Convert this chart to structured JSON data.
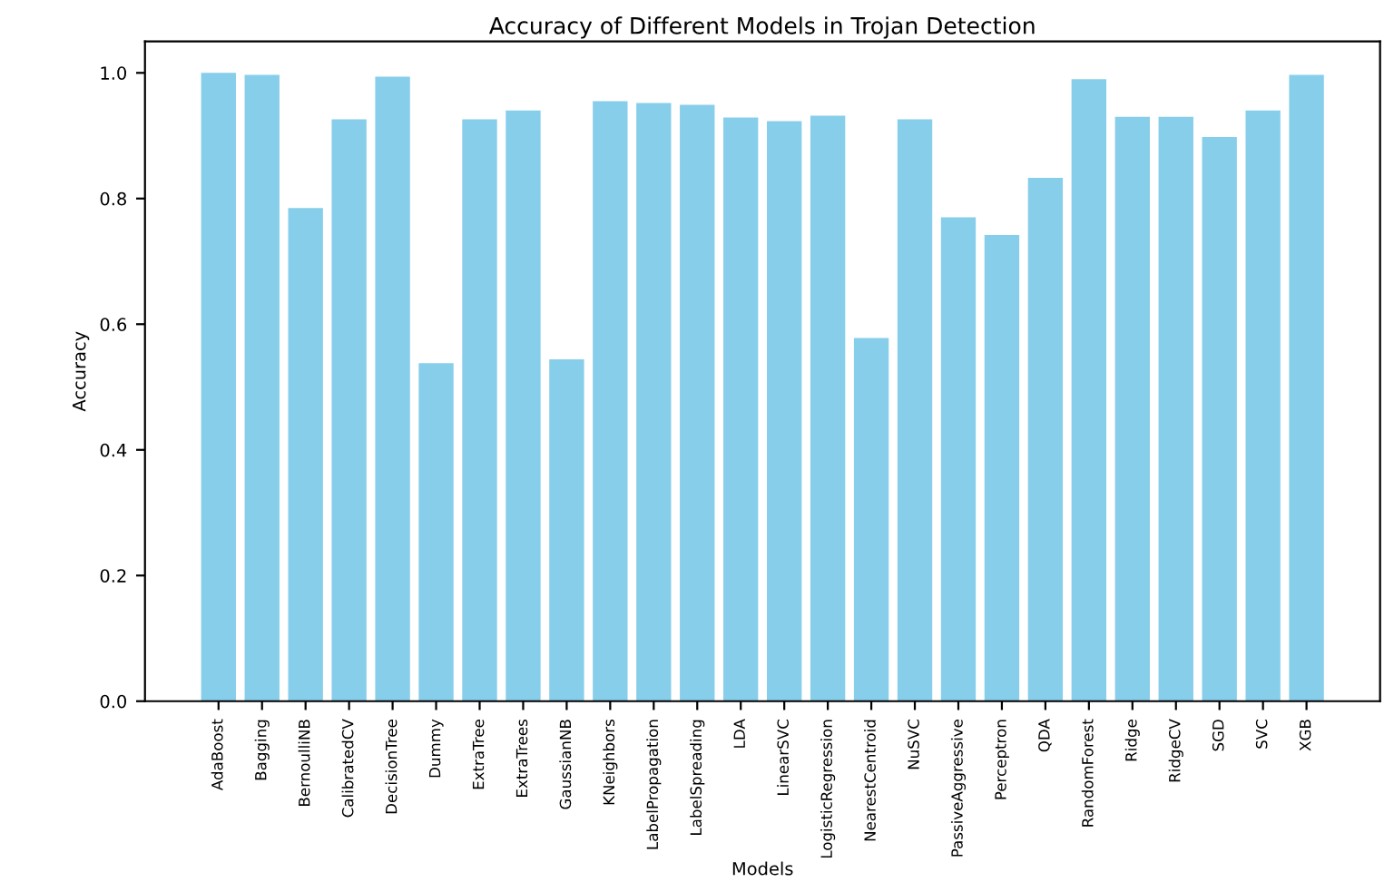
{
  "chart_data": {
    "type": "bar",
    "title": "Accuracy of Different Models in Trojan Detection",
    "xlabel": "Models",
    "ylabel": "Accuracy",
    "categories": [
      "AdaBoost",
      "Bagging",
      "BernoulliNB",
      "CalibratedCV",
      "DecisionTree",
      "Dummy",
      "ExtraTree",
      "ExtraTrees",
      "GaussianNB",
      "KNeighbors",
      "LabelPropagation",
      "LabelSpreading",
      "LDA",
      "LinearSVC",
      "LogisticRegression",
      "NearestCentroid",
      "NuSVC",
      "PassiveAggressive",
      "Perceptron",
      "QDA",
      "RandomForest",
      "Ridge",
      "RidgeCV",
      "SGD",
      "SVC",
      "XGB"
    ],
    "values": [
      1.0,
      0.997,
      0.785,
      0.926,
      0.994,
      0.538,
      0.926,
      0.94,
      0.544,
      0.955,
      0.952,
      0.949,
      0.929,
      0.923,
      0.932,
      0.578,
      0.926,
      0.77,
      0.742,
      0.833,
      0.99,
      0.93,
      0.93,
      0.898,
      0.94,
      0.997
    ],
    "color": "#87ceeb",
    "ylim": [
      0,
      1.05
    ],
    "yticks": [
      {
        "value": 0,
        "label": "0.0"
      },
      0.2,
      0.4,
      0.6,
      0.8,
      {
        "value": 1,
        "label": "1.0"
      }
    ],
    "grid": false
  }
}
